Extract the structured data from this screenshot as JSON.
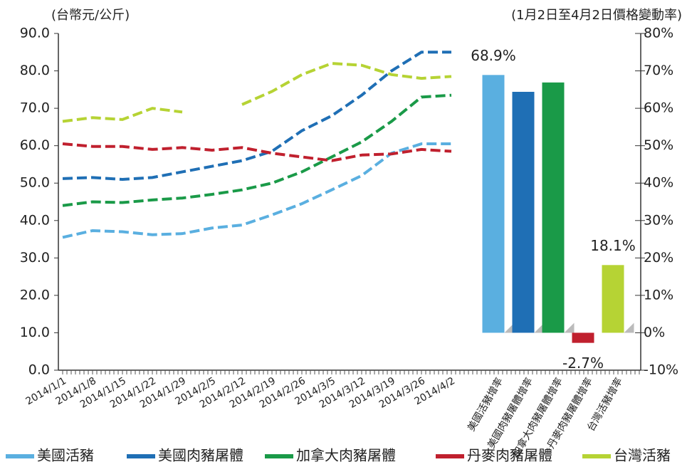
{
  "chart_data": [
    {
      "type": "line",
      "y_label": "(台幣元/公斤)",
      "y2_label": "(1月2日至4月2日價格變動率)",
      "categories": [
        "2014/1/1",
        "2014/1/8",
        "2014/1/15",
        "2014/1/22",
        "2014/1/29",
        "2014/2/5",
        "2014/2/12",
        "2014/2/19",
        "2014/2/26",
        "2014/3/5",
        "2014/3/12",
        "2014/3/19",
        "2014/3/26",
        "2014/4/2"
      ],
      "line_style": "dashed",
      "series": [
        {
          "name": "美國活豬",
          "color": "#5aafe0",
          "values": [
            35.5,
            37.3,
            37,
            36.2,
            36.5,
            38,
            38.8,
            41.5,
            44.5,
            48.2,
            52,
            58,
            60.5,
            60.5
          ]
        },
        {
          "name": "美國肉豬屠體",
          "color": "#1f6fb5",
          "values": [
            51.2,
            51.5,
            51,
            51.5,
            53,
            54.5,
            56,
            58.5,
            64,
            68,
            73.5,
            80,
            85,
            85
          ]
        },
        {
          "name": "加拿大肉豬屠體",
          "color": "#1a9a48",
          "values": [
            44,
            45,
            44.8,
            45.5,
            46,
            47,
            48.2,
            50,
            53,
            57,
            61,
            66.5,
            73,
            73.5
          ]
        },
        {
          "name": "丹麥肉豬屠體",
          "color": "#c0202e",
          "values": [
            60.5,
            59.8,
            59.8,
            59,
            59.5,
            58.8,
            59.5,
            58,
            57,
            56,
            57.5,
            57.8,
            59,
            58.5
          ]
        },
        {
          "name": "台灣活豬",
          "color": "#b6d334",
          "values": [
            66.5,
            67.5,
            67,
            70,
            69,
            null,
            71,
            74.5,
            79,
            82,
            81.5,
            79,
            78,
            78.5
          ]
        }
      ],
      "ylim": [
        0,
        90
      ],
      "yticks": [
        {
          "value": 0,
          "label": "0.0"
        },
        {
          "value": 10,
          "label": "10.0"
        },
        {
          "value": 20,
          "label": "20.0"
        },
        {
          "value": 30,
          "label": "30.0"
        },
        {
          "value": 40,
          "label": "40.0"
        },
        {
          "value": 50,
          "label": "50.0"
        },
        {
          "value": 60,
          "label": "60.0"
        },
        {
          "value": 70,
          "label": "70.0"
        },
        {
          "value": 80,
          "label": "80.0"
        },
        {
          "value": 90,
          "label": "90.0"
        }
      ],
      "y2lim": [
        -10,
        80
      ],
      "y2ticks": [
        {
          "value": -10,
          "label": "-10%"
        },
        {
          "value": 0,
          "label": "0%"
        },
        {
          "value": 10,
          "label": "10%"
        },
        {
          "value": 20,
          "label": "20%"
        },
        {
          "value": 30,
          "label": "30%"
        },
        {
          "value": 40,
          "label": "40%"
        },
        {
          "value": 50,
          "label": "50%"
        },
        {
          "value": 60,
          "label": "60%"
        },
        {
          "value": 70,
          "label": "70%"
        },
        {
          "value": 80,
          "label": "80%"
        }
      ],
      "legend": "bottom"
    },
    {
      "type": "bar",
      "axis": "y2",
      "categories": [
        "美國活豬增率",
        "美國肉豬屠體增率",
        "加拿大肉豬屠體增率",
        "丹麥肉豬屠體增率",
        "台灣活豬增率"
      ],
      "values": [
        68.9,
        64.4,
        66.9,
        -2.7,
        18.1
      ],
      "value_labels": [
        "68.9%",
        null,
        null,
        "-2.7%",
        "18.1%"
      ],
      "colors": [
        "#5aafe0",
        "#1f6fb5",
        "#1a9a48",
        "#c0202e",
        "#b6d334"
      ]
    }
  ]
}
